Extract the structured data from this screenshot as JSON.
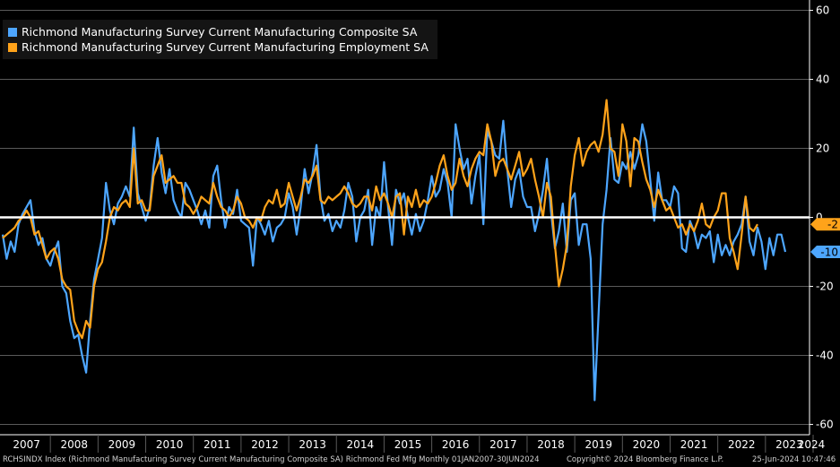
{
  "chart_data": {
    "type": "line",
    "series": [
      {
        "name": "Richmond Manufacturing Survey Current Manufacturing Composite SA",
        "color": "#4da6ff",
        "values": [
          -5,
          -12,
          -7,
          -10,
          -2,
          1,
          3,
          5,
          -4,
          -8,
          -6,
          -12,
          -14,
          -10,
          -7,
          -20,
          -22,
          -30,
          -35,
          -34,
          -40,
          -45,
          -30,
          -18,
          -12,
          -6,
          10,
          2,
          -2,
          4,
          6,
          9,
          6,
          26,
          7,
          3,
          -1,
          3,
          15,
          23,
          13,
          7,
          14,
          5,
          2,
          0,
          10,
          8,
          5,
          2,
          -2,
          2,
          -3,
          12,
          15,
          5,
          -3,
          3,
          1,
          8,
          -1,
          -2,
          -3,
          -14,
          0,
          -2,
          -5,
          -1,
          -7,
          -3,
          -2,
          0,
          7,
          3,
          -5,
          3,
          14,
          7,
          13,
          21,
          6,
          -1,
          1,
          -4,
          -1,
          -3,
          2,
          10,
          6,
          -7,
          0,
          2,
          8,
          -8,
          3,
          0,
          16,
          3,
          -8,
          8,
          4,
          7,
          0,
          -5,
          1,
          -4,
          -1,
          5,
          12,
          6,
          8,
          14,
          10,
          0,
          27,
          20,
          14,
          17,
          4,
          12,
          18,
          -2,
          25,
          22,
          18,
          17,
          28,
          14,
          3,
          11,
          14,
          6,
          3,
          3,
          -4,
          1,
          8,
          17,
          2,
          -9,
          -4,
          4,
          -10,
          5,
          7,
          -8,
          -2,
          -2,
          -12,
          -53,
          -28,
          -2,
          8,
          23,
          11,
          10,
          16,
          14,
          19,
          14,
          18,
          27,
          22,
          11,
          -1,
          13,
          5,
          5,
          3,
          9,
          7,
          -9,
          -10,
          -1,
          -4,
          -9,
          -5,
          -6,
          -4,
          -13,
          -5,
          -11,
          -8,
          -11,
          -7,
          -5,
          -2,
          6,
          -7,
          -11,
          -3,
          -7,
          -15,
          -6,
          -11,
          -5,
          -5,
          -10
        ]
      },
      {
        "name": "Richmond Manufacturing Survey Current Manufacturing Employment SA",
        "color": "#ffa31a",
        "values": [
          -6,
          -5,
          -4,
          -3,
          -1,
          0,
          2,
          0,
          -5,
          -4,
          -8,
          -12,
          -10,
          -9,
          -12,
          -18,
          -20,
          -21,
          -30,
          -33,
          -35,
          -30,
          -32,
          -20,
          -15,
          -13,
          -7,
          0,
          3,
          2,
          4,
          5,
          3,
          20,
          4,
          5,
          2,
          2,
          12,
          15,
          18,
          10,
          11,
          12,
          10,
          10,
          4,
          3,
          1,
          3,
          6,
          5,
          4,
          10,
          6,
          3,
          2,
          0,
          2,
          6,
          4,
          0,
          -1,
          -3,
          0,
          -1,
          3,
          5,
          4,
          8,
          3,
          4,
          10,
          6,
          2,
          6,
          11,
          10,
          12,
          15,
          5,
          4,
          6,
          5,
          6,
          7,
          9,
          7,
          4,
          3,
          4,
          6,
          6,
          2,
          9,
          5,
          7,
          4,
          0,
          6,
          7,
          -5,
          6,
          3,
          8,
          3,
          5,
          4,
          6,
          10,
          15,
          18,
          12,
          8,
          10,
          17,
          12,
          9,
          14,
          17,
          19,
          18,
          27,
          22,
          12,
          16,
          17,
          14,
          11,
          15,
          19,
          12,
          14,
          17,
          11,
          6,
          0,
          10,
          6,
          -8,
          -20,
          -15,
          -8,
          9,
          18,
          23,
          15,
          19,
          21,
          22,
          19,
          24,
          34,
          20,
          19,
          12,
          27,
          22,
          9,
          23,
          22,
          16,
          11,
          8,
          3,
          8,
          5,
          2,
          3,
          0,
          -3,
          -2,
          -5,
          -2,
          -4,
          -1,
          4,
          -2,
          -3,
          0,
          2,
          7,
          7,
          -6,
          -10,
          -15,
          -5,
          6,
          -3,
          -4,
          -2
        ]
      }
    ],
    "x_start": "2007-01",
    "x_end": "2024-06",
    "frequency": "monthly",
    "ylim": [
      -63,
      63
    ],
    "y_ticks": [
      60,
      40,
      20,
      0,
      -20,
      -40,
      -60
    ],
    "x_tick_labels": [
      "2007",
      "2008",
      "2009",
      "2010",
      "2011",
      "2012",
      "2013",
      "2014",
      "2015",
      "2016",
      "2017",
      "2018",
      "2019",
      "2020",
      "2021",
      "2022",
      "2023",
      "2024"
    ],
    "reference_line": 0,
    "last_value_labels": [
      "-2",
      "-10"
    ],
    "grid": true,
    "legend_position": "top-left"
  },
  "footer": {
    "left": "RCHSINDX Index (Richmond Manufacturing Survey Current Manufacturing Composite SA) Richmond Fed Mfg  Monthly 01JAN2007-30JUN2024",
    "center": "Copyright© 2024 Bloomberg Finance L.P.",
    "right": "25-Jun-2024 10:47:46"
  },
  "colors": {
    "background": "#000000",
    "grid": "#5a5a5a",
    "axis_text": "#ffffff",
    "zero_line": "#ffffff"
  }
}
